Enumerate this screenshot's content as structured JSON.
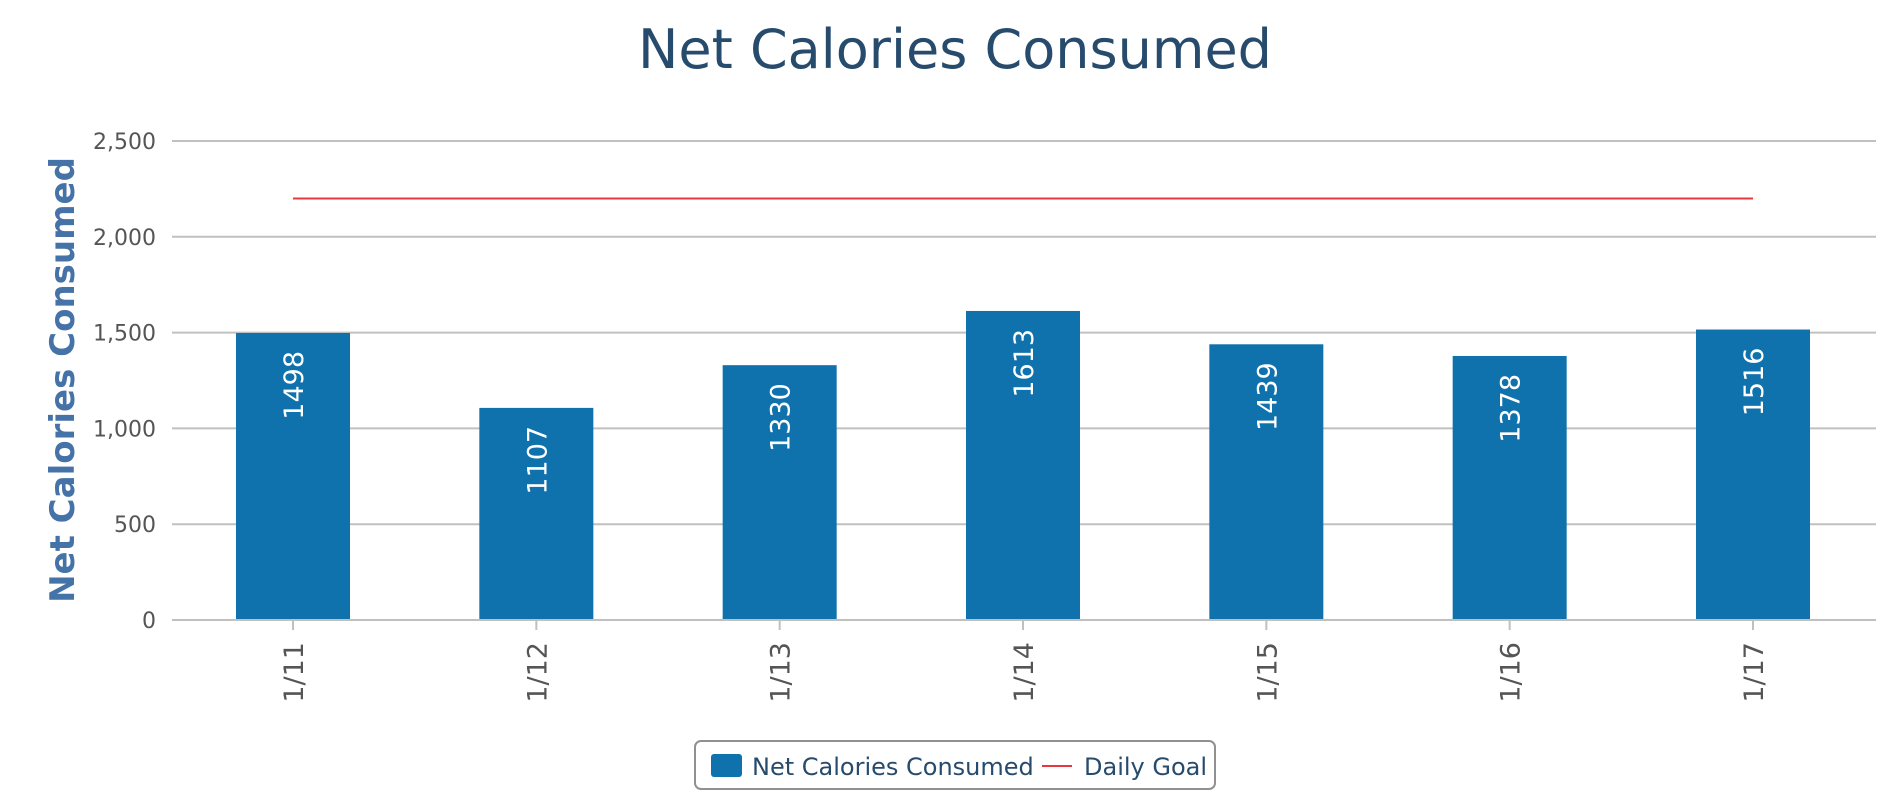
{
  "chart_data": {
    "type": "bar",
    "title": "Net Calories Consumed",
    "ylabel": "Net Calories Consumed",
    "xlabel": "",
    "categories": [
      "1/11",
      "1/12",
      "1/13",
      "1/14",
      "1/15",
      "1/16",
      "1/17"
    ],
    "series": [
      {
        "name": "Net Calories Consumed",
        "type": "bar",
        "values": [
          1498,
          1107,
          1330,
          1613,
          1439,
          1378,
          1516
        ],
        "color": "#1072ad",
        "data_labels": [
          "1498",
          "1107",
          "1330",
          "1613",
          "1439",
          "1378",
          "1516"
        ]
      },
      {
        "name": "Daily Goal",
        "type": "line",
        "value": 2200,
        "color": "#e8383d"
      }
    ],
    "ylim": [
      0,
      2500
    ],
    "y_ticks": [
      0,
      500,
      1000,
      1500,
      2000,
      2500
    ],
    "y_tick_labels": [
      "0",
      "500",
      "1,000",
      "1,500",
      "2,000",
      "2,500"
    ],
    "grid": true,
    "legend_position": "bottom-center"
  }
}
